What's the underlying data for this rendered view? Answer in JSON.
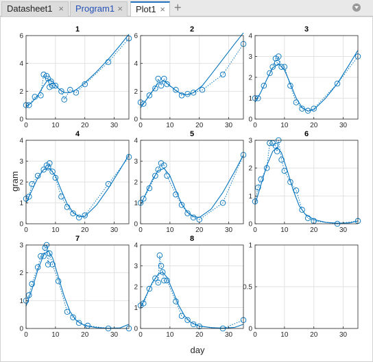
{
  "tabs": [
    {
      "label": "Datasheet1",
      "active": false
    },
    {
      "label": "Program1",
      "active": false
    },
    {
      "label": "Plot1",
      "active": true
    }
  ],
  "add_tab_glyph": "+",
  "close_glyph": "×",
  "colors": {
    "series": "#0072BD",
    "grid": "#e2e2e2"
  },
  "chart_data": {
    "type": "scatter",
    "xlabel": "day",
    "ylabel": "gram",
    "grid": true,
    "panels": [
      {
        "title": "1",
        "xlim": [
          0,
          35
        ],
        "ylim": [
          0,
          6
        ],
        "yticks": [
          0,
          2,
          4,
          6
        ],
        "obs": [
          [
            0,
            1
          ],
          [
            1,
            1
          ],
          [
            3,
            1.6
          ],
          [
            5,
            1.7
          ],
          [
            6,
            3.2
          ],
          [
            7,
            3.1
          ],
          [
            7.5,
            2.9
          ],
          [
            8,
            2.3
          ],
          [
            8.5,
            2.7
          ],
          [
            9,
            2.4
          ],
          [
            10,
            2.4
          ],
          [
            12,
            2
          ],
          [
            13,
            1.4
          ],
          [
            15,
            2.1
          ],
          [
            17,
            1.9
          ],
          [
            20,
            2.5
          ],
          [
            28,
            4.1
          ],
          [
            35,
            5.8
          ]
        ],
        "fit": [
          [
            0,
            0.9
          ],
          [
            2,
            1.2
          ],
          [
            4,
            1.7
          ],
          [
            6,
            2.4
          ],
          [
            7.5,
            2.85
          ],
          [
            9,
            2.7
          ],
          [
            11,
            2.2
          ],
          [
            13,
            1.9
          ],
          [
            15,
            1.9
          ],
          [
            17,
            2.1
          ],
          [
            20,
            2.6
          ],
          [
            24,
            3.4
          ],
          [
            28,
            4.3
          ],
          [
            32,
            5.3
          ],
          [
            35,
            6.1
          ]
        ]
      },
      {
        "title": "2",
        "xlim": [
          0,
          35
        ],
        "ylim": [
          0,
          6
        ],
        "yticks": [
          0,
          2,
          4,
          6
        ],
        "obs": [
          [
            0,
            1.2
          ],
          [
            1,
            1.1
          ],
          [
            3,
            1.7
          ],
          [
            5,
            2.2
          ],
          [
            6,
            2.9
          ],
          [
            7,
            2.4
          ],
          [
            8,
            2.9
          ],
          [
            9,
            2.5
          ],
          [
            12,
            2.1
          ],
          [
            14,
            1.7
          ],
          [
            16,
            1.8
          ],
          [
            18,
            1.9
          ],
          [
            21,
            2.1
          ],
          [
            28,
            3.2
          ],
          [
            35,
            5.4
          ]
        ],
        "fit": [
          [
            0,
            0.8
          ],
          [
            2,
            1.4
          ],
          [
            4,
            2
          ],
          [
            6,
            2.6
          ],
          [
            8,
            2.75
          ],
          [
            10,
            2.4
          ],
          [
            12,
            2.05
          ],
          [
            14,
            1.8
          ],
          [
            16,
            1.75
          ],
          [
            18,
            1.9
          ],
          [
            21,
            2.4
          ],
          [
            24,
            3.2
          ],
          [
            28,
            4.3
          ],
          [
            32,
            5.4
          ],
          [
            35,
            6.2
          ]
        ]
      },
      {
        "title": "3",
        "xlim": [
          0,
          35
        ],
        "ylim": [
          0,
          4
        ],
        "yticks": [
          0,
          1,
          2,
          3,
          4
        ],
        "obs": [
          [
            0,
            1
          ],
          [
            1,
            1
          ],
          [
            3,
            1.6
          ],
          [
            5,
            2.2
          ],
          [
            6,
            2.5
          ],
          [
            7,
            2.9
          ],
          [
            7.5,
            2.7
          ],
          [
            8,
            3
          ],
          [
            9,
            2.5
          ],
          [
            10,
            2.5
          ],
          [
            12,
            1.6
          ],
          [
            14,
            0.8
          ],
          [
            16,
            0.5
          ],
          [
            18,
            0.4
          ],
          [
            20,
            0.5
          ],
          [
            28,
            1.7
          ],
          [
            35,
            3
          ]
        ],
        "fit": [
          [
            0,
            0.8
          ],
          [
            2,
            1.3
          ],
          [
            4,
            1.9
          ],
          [
            6,
            2.45
          ],
          [
            8,
            2.65
          ],
          [
            10,
            2.35
          ],
          [
            12,
            1.7
          ],
          [
            14,
            1
          ],
          [
            16,
            0.55
          ],
          [
            18,
            0.38
          ],
          [
            20,
            0.45
          ],
          [
            24,
            1
          ],
          [
            28,
            1.7
          ],
          [
            32,
            2.6
          ],
          [
            35,
            3.3
          ]
        ]
      },
      {
        "title": "4",
        "xlim": [
          0,
          35
        ],
        "ylim": [
          0,
          4
        ],
        "yticks": [
          0,
          1,
          2,
          3,
          4
        ],
        "obs": [
          [
            0,
            1.2
          ],
          [
            1,
            1.3
          ],
          [
            2,
            1.9
          ],
          [
            4,
            2.3
          ],
          [
            6,
            2.6
          ],
          [
            7,
            2.8
          ],
          [
            7.5,
            2.7
          ],
          [
            8,
            2.9
          ],
          [
            9,
            2.5
          ],
          [
            10,
            2.2
          ],
          [
            12,
            1.3
          ],
          [
            14,
            0.8
          ],
          [
            16,
            0.5
          ],
          [
            18,
            0.3
          ],
          [
            20,
            0.4
          ],
          [
            28,
            1.9
          ],
          [
            35,
            3.2
          ]
        ],
        "fit": [
          [
            0,
            1
          ],
          [
            2,
            1.6
          ],
          [
            4,
            2.2
          ],
          [
            6,
            2.6
          ],
          [
            8,
            2.65
          ],
          [
            10,
            2.3
          ],
          [
            12,
            1.6
          ],
          [
            14,
            0.95
          ],
          [
            16,
            0.55
          ],
          [
            18,
            0.35
          ],
          [
            20,
            0.35
          ],
          [
            24,
            0.9
          ],
          [
            28,
            1.7
          ],
          [
            32,
            2.6
          ],
          [
            35,
            3.3
          ]
        ]
      },
      {
        "title": "5",
        "xlim": [
          0,
          35
        ],
        "ylim": [
          0,
          4
        ],
        "yticks": [
          0,
          1,
          2,
          3,
          4
        ],
        "obs": [
          [
            0,
            1
          ],
          [
            1,
            1.2
          ],
          [
            3,
            1.7
          ],
          [
            5,
            2.3
          ],
          [
            6,
            2.6
          ],
          [
            7,
            2.9
          ],
          [
            8,
            2.8
          ],
          [
            9,
            2.3
          ],
          [
            12,
            1.4
          ],
          [
            14,
            0.9
          ],
          [
            16,
            0.5
          ],
          [
            18,
            0.3
          ],
          [
            20,
            0.2
          ],
          [
            28,
            1
          ],
          [
            35,
            3.3
          ]
        ],
        "fit": [
          [
            0,
            0.9
          ],
          [
            2,
            1.5
          ],
          [
            4,
            2.1
          ],
          [
            6,
            2.55
          ],
          [
            8,
            2.65
          ],
          [
            10,
            2.3
          ],
          [
            12,
            1.6
          ],
          [
            14,
            0.95
          ],
          [
            16,
            0.55
          ],
          [
            18,
            0.35
          ],
          [
            20,
            0.3
          ],
          [
            24,
            0.7
          ],
          [
            28,
            1.5
          ],
          [
            32,
            2.5
          ],
          [
            35,
            3.3
          ]
        ]
      },
      {
        "title": "6",
        "xlim": [
          0,
          35
        ],
        "ylim": [
          0,
          3
        ],
        "yticks": [
          0,
          1,
          2,
          3
        ],
        "obs": [
          [
            0,
            0.8
          ],
          [
            1,
            1.3
          ],
          [
            2,
            1.6
          ],
          [
            4,
            2
          ],
          [
            5,
            2.9
          ],
          [
            6,
            2.9
          ],
          [
            7,
            2.8
          ],
          [
            7.5,
            2.6
          ],
          [
            8,
            3
          ],
          [
            9,
            2.3
          ],
          [
            10,
            1.9
          ],
          [
            12,
            1.5
          ],
          [
            14,
            1.2
          ],
          [
            16,
            0.5
          ],
          [
            18,
            0.2
          ],
          [
            20,
            0.1
          ],
          [
            28,
            0
          ],
          [
            35,
            0.1
          ]
        ],
        "fit": [
          [
            0,
            0.7
          ],
          [
            2,
            1.4
          ],
          [
            4,
            2.1
          ],
          [
            6,
            2.6
          ],
          [
            7.5,
            2.75
          ],
          [
            9,
            2.55
          ],
          [
            11,
            1.9
          ],
          [
            13,
            1.2
          ],
          [
            15,
            0.65
          ],
          [
            17,
            0.35
          ],
          [
            20,
            0.15
          ],
          [
            24,
            0.05
          ],
          [
            28,
            0.02
          ],
          [
            32,
            0.03
          ],
          [
            35,
            0.1
          ]
        ]
      },
      {
        "title": "7",
        "xlim": [
          0,
          35
        ],
        "ylim": [
          0,
          3
        ],
        "yticks": [
          0,
          1,
          2,
          3
        ],
        "obs": [
          [
            0,
            1
          ],
          [
            1,
            1.2
          ],
          [
            2,
            1.6
          ],
          [
            4,
            2.2
          ],
          [
            5,
            2.6
          ],
          [
            6,
            2.6
          ],
          [
            6.5,
            2.9
          ],
          [
            7,
            3
          ],
          [
            7.5,
            2.3
          ],
          [
            8,
            2.7
          ],
          [
            9,
            2.3
          ],
          [
            11,
            1.7
          ],
          [
            14,
            0.6
          ],
          [
            16,
            0.4
          ],
          [
            18,
            0.2
          ],
          [
            21,
            0.1
          ],
          [
            28,
            0
          ],
          [
            35,
            0
          ]
        ],
        "fit": [
          [
            0,
            0.8
          ],
          [
            2,
            1.4
          ],
          [
            4,
            2.1
          ],
          [
            6,
            2.65
          ],
          [
            7.5,
            2.8
          ],
          [
            9,
            2.55
          ],
          [
            11,
            1.85
          ],
          [
            13,
            1.15
          ],
          [
            15,
            0.6
          ],
          [
            17,
            0.3
          ],
          [
            20,
            0.1
          ],
          [
            24,
            0.03
          ],
          [
            28,
            0.01
          ],
          [
            32,
            0.02
          ],
          [
            35,
            0.15
          ]
        ]
      },
      {
        "title": "8",
        "xlim": [
          0,
          35
        ],
        "ylim": [
          0,
          4
        ],
        "yticks": [
          0,
          1,
          2,
          3,
          4
        ],
        "obs": [
          [
            0,
            1.1
          ],
          [
            1,
            1.2
          ],
          [
            3,
            1.9
          ],
          [
            5,
            2.4
          ],
          [
            6,
            2.2
          ],
          [
            6.5,
            3.5
          ],
          [
            7,
            3
          ],
          [
            7.5,
            2.7
          ],
          [
            8,
            2.3
          ],
          [
            9,
            2.3
          ],
          [
            12,
            1.3
          ],
          [
            14,
            0.6
          ],
          [
            16,
            0.4
          ],
          [
            18,
            0.2
          ],
          [
            20,
            0.1
          ],
          [
            28,
            0
          ],
          [
            35,
            0.4
          ]
        ],
        "fit": [
          [
            0,
            1
          ],
          [
            2,
            1.6
          ],
          [
            4,
            2.2
          ],
          [
            6,
            2.6
          ],
          [
            7.5,
            2.7
          ],
          [
            9,
            2.45
          ],
          [
            11,
            1.8
          ],
          [
            13,
            1.1
          ],
          [
            15,
            0.6
          ],
          [
            17,
            0.3
          ],
          [
            20,
            0.12
          ],
          [
            24,
            0.04
          ],
          [
            28,
            0.02
          ],
          [
            32,
            0.05
          ],
          [
            35,
            0.2
          ]
        ]
      },
      {
        "title": "",
        "xlim": [
          0,
          35
        ],
        "ylim": [
          0,
          1
        ],
        "yticks": [
          0,
          0.5,
          1
        ],
        "obs": [],
        "fit": []
      }
    ],
    "xticks": [
      0,
      10,
      20,
      30
    ]
  }
}
